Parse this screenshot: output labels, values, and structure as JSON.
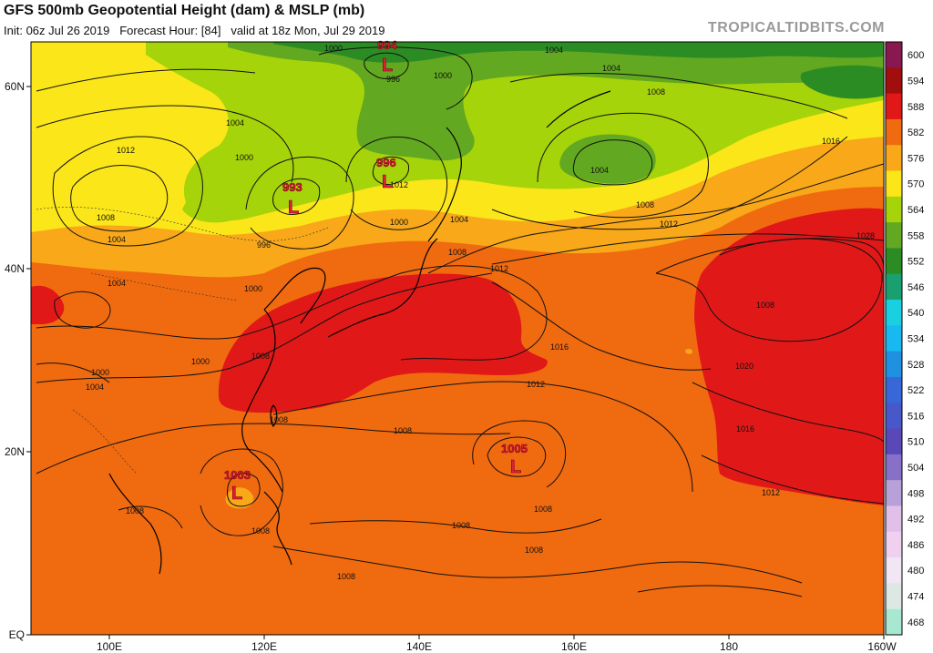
{
  "header": {
    "title": "GFS 500mb Geopotential Height (dam) & MSLP (mb)",
    "init": "Init: 06z Jul 26 2019",
    "forecast_hour": "Forecast Hour: [84]",
    "valid": "valid at 18z Mon, Jul 29 2019",
    "brand": "TROPICALTIDBITS.COM"
  },
  "axes": {
    "x_ticks": [
      "100E",
      "120E",
      "140E",
      "160E",
      "180",
      "160W"
    ],
    "y_ticks": [
      "60N",
      "40N",
      "20N",
      "EQ"
    ]
  },
  "colorbar": [
    {
      "value": "600",
      "color": "#8a1850"
    },
    {
      "value": "594",
      "color": "#a00e0e"
    },
    {
      "value": "588",
      "color": "#e01818"
    },
    {
      "value": "582",
      "color": "#f06a10"
    },
    {
      "value": "576",
      "color": "#f8a818"
    },
    {
      "value": "570",
      "color": "#fbe61a"
    },
    {
      "value": "564",
      "color": "#a6d40a"
    },
    {
      "value": "558",
      "color": "#62a820"
    },
    {
      "value": "552",
      "color": "#2c8c24"
    },
    {
      "value": "546",
      "color": "#1aa070"
    },
    {
      "value": "540",
      "color": "#18d0e0"
    },
    {
      "value": "534",
      "color": "#18b8f0"
    },
    {
      "value": "528",
      "color": "#2090e0"
    },
    {
      "value": "522",
      "color": "#3868d8"
    },
    {
      "value": "516",
      "color": "#4858c8"
    },
    {
      "value": "510",
      "color": "#5848b8"
    },
    {
      "value": "504",
      "color": "#8870c8"
    },
    {
      "value": "498",
      "color": "#b8a0d8"
    },
    {
      "value": "492",
      "color": "#e0c0e8"
    },
    {
      "value": "486",
      "color": "#f0d0f0"
    },
    {
      "value": "480",
      "color": "#f0e6f4"
    },
    {
      "value": "474",
      "color": "#dde8e4"
    },
    {
      "value": "468",
      "color": "#a8e8d0"
    }
  ],
  "lows": [
    {
      "value": "994"
    },
    {
      "value": "996"
    },
    {
      "value": "993"
    },
    {
      "value": "1003"
    },
    {
      "value": "1005"
    }
  ],
  "low_symbol": "L",
  "isobar_labels": [
    "1000",
    "996",
    "1000",
    "1004",
    "1008",
    "1004",
    "1012",
    "1000",
    "1008",
    "1004",
    "1004",
    "996",
    "1004",
    "1000",
    "1008",
    "1000",
    "1004",
    "1008",
    "1012",
    "1004",
    "1016",
    "1008",
    "1012",
    "1028",
    "1016",
    "1012",
    "1008",
    "1020",
    "1012",
    "1016",
    "1008",
    "1008",
    "1008",
    "1008",
    "1008",
    "1008",
    "1008",
    "1012",
    "1000",
    "1008",
    "1000",
    "1004"
  ]
}
